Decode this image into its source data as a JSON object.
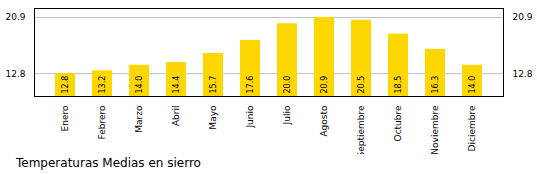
{
  "chart_data": {
    "type": "bar",
    "title": "Temperaturas Medias en sierro",
    "categories": [
      "Enero",
      "Febrero",
      "Marzo",
      "Abril",
      "Mayo",
      "Junio",
      "Julio",
      "Agosto",
      "Septiembre",
      "Octubre",
      "Noviembre",
      "Diciembre"
    ],
    "values": [
      12.8,
      13.2,
      14.0,
      14.4,
      15.7,
      17.6,
      20.0,
      20.9,
      20.5,
      18.5,
      16.3,
      14.0
    ],
    "value_labels": [
      "12.8",
      "13.2",
      "14.0",
      "14.4",
      "15.7",
      "17.6",
      "20.0",
      "20.9",
      "20.5",
      "18.5",
      "16.3",
      "14.0"
    ],
    "color": "#FFD700",
    "ylim": [
      9.5,
      22.2
    ],
    "yticks": [
      12.8,
      20.9
    ],
    "grid": true,
    "data_labels": true
  }
}
